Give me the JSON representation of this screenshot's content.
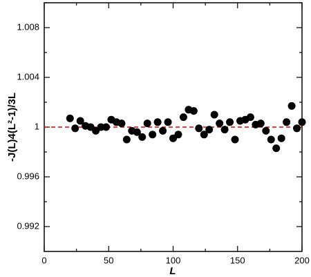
{
  "chart_data": {
    "type": "scatter",
    "x_label": "L",
    "y_label": "-J(L)4(L²-1)/3L",
    "x": [
      20,
      24,
      28,
      32,
      36,
      40,
      44,
      48,
      52,
      56,
      60,
      64,
      68,
      72,
      76,
      80,
      84,
      88,
      92,
      96,
      100,
      104,
      108,
      112,
      116,
      120,
      124,
      128,
      132,
      136,
      140,
      144,
      148,
      152,
      156,
      160,
      164,
      168,
      172,
      176,
      180,
      184,
      188,
      192,
      196,
      200
    ],
    "values": [
      1.0007,
      0.9999,
      1.0005,
      1.0001,
      1.0,
      0.9997,
      1.0,
      1.0,
      1.0006,
      1.0004,
      1.0003,
      0.999,
      0.9997,
      0.9996,
      0.9992,
      1.0003,
      0.9994,
      1.0004,
      0.9997,
      1.0004,
      0.9991,
      0.9994,
      1.0008,
      1.0014,
      1.0013,
      0.9999,
      0.9994,
      0.9998,
      1.001,
      1.0003,
      0.9998,
      1.0004,
      0.999,
      1.0005,
      1.0006,
      1.0008,
      1.0002,
      1.0003,
      0.9997,
      0.999,
      0.9983,
      0.9991,
      1.0004,
      1.0017,
      0.9999,
      1.0004
    ],
    "color": "#000000",
    "reference_line": {
      "value": 1,
      "color": "#e00000"
    },
    "xlim": [
      0,
      200
    ],
    "xticks": [
      0,
      50,
      100,
      150,
      200
    ],
    "xminorticks": [
      25,
      75,
      125,
      175
    ],
    "ylim": [
      0.99,
      1.01
    ],
    "yticks": [
      0.992,
      0.996,
      1,
      1.004,
      1.008
    ],
    "yminorticks": [
      0.994,
      0.998,
      1.002,
      1.006,
      1.01
    ]
  }
}
